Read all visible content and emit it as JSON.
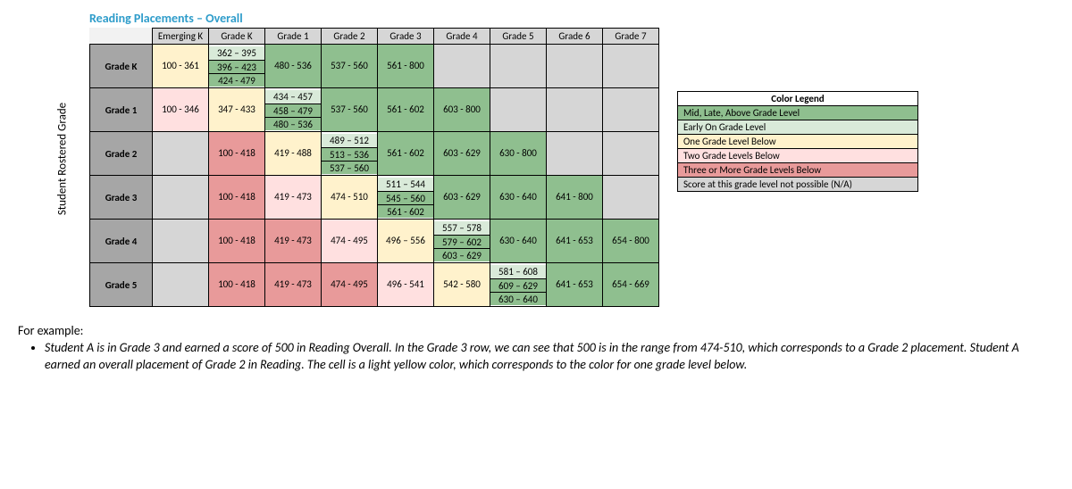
{
  "title": "Reading Placements – Overall",
  "vertical_axis_label": "Student Rostered Grade",
  "colors": {
    "mid_above": "#8fbf8f",
    "early_on": "#d9ead9",
    "one_below": "#fff2cc",
    "two_below": "#ffe0e0",
    "three_below": "#e89a9a",
    "na": "#d6d6d6",
    "header_row": "#d6d6d6",
    "header_col": "#a6a6a6"
  },
  "column_headers": [
    "Emerging K",
    "Grade K",
    "Grade 1",
    "Grade 2",
    "Grade 3",
    "Grade 4",
    "Grade 5",
    "Grade 6",
    "Grade 7"
  ],
  "rows": [
    {
      "label": "Grade K",
      "cells": [
        {
          "lines": [
            "100 - 361"
          ],
          "color": "one_below"
        },
        {
          "lines": [
            "362 – 395",
            "396 – 423",
            "424 - 479"
          ],
          "color": "mid_above",
          "first_color": "early_on"
        },
        {
          "lines": [
            "480 - 536"
          ],
          "color": "mid_above"
        },
        {
          "lines": [
            "537 - 560"
          ],
          "color": "mid_above"
        },
        {
          "lines": [
            "561 - 800"
          ],
          "color": "mid_above"
        },
        {
          "na": true
        },
        {
          "na": true
        },
        {
          "na": true
        },
        {
          "na": true
        }
      ]
    },
    {
      "label": "Grade 1",
      "cells": [
        {
          "lines": [
            "100 - 346"
          ],
          "color": "two_below"
        },
        {
          "lines": [
            "347 - 433"
          ],
          "color": "one_below"
        },
        {
          "lines": [
            "434 – 457",
            "458 – 479",
            "480 – 536"
          ],
          "color": "mid_above",
          "first_color": "early_on"
        },
        {
          "lines": [
            "537 - 560"
          ],
          "color": "mid_above"
        },
        {
          "lines": [
            "561 - 602"
          ],
          "color": "mid_above"
        },
        {
          "lines": [
            "603 - 800"
          ],
          "color": "mid_above"
        },
        {
          "na": true
        },
        {
          "na": true
        },
        {
          "na": true
        }
      ]
    },
    {
      "label": "Grade 2",
      "cells": [
        {
          "na": true
        },
        {
          "lines": [
            "100 - 418"
          ],
          "color": "three_below"
        },
        {
          "lines": [
            "419 - 488"
          ],
          "color": "one_below"
        },
        {
          "lines": [
            "489 – 512",
            "513 – 536",
            "537 – 560"
          ],
          "color": "mid_above",
          "first_color": "early_on"
        },
        {
          "lines": [
            "561 - 602"
          ],
          "color": "mid_above"
        },
        {
          "lines": [
            "603 - 629"
          ],
          "color": "mid_above"
        },
        {
          "lines": [
            "630 - 800"
          ],
          "color": "mid_above"
        },
        {
          "na": true
        },
        {
          "na": true
        }
      ]
    },
    {
      "label": "Grade 3",
      "cells": [
        {
          "na": true
        },
        {
          "lines": [
            "100 - 418"
          ],
          "color": "three_below"
        },
        {
          "lines": [
            "419 - 473"
          ],
          "color": "two_below"
        },
        {
          "lines": [
            "474 - 510"
          ],
          "color": "one_below"
        },
        {
          "lines": [
            "511 – 544",
            "545 – 560",
            "561 - 602"
          ],
          "color": "mid_above",
          "first_color": "early_on"
        },
        {
          "lines": [
            "603 - 629"
          ],
          "color": "mid_above"
        },
        {
          "lines": [
            "630 - 640"
          ],
          "color": "mid_above"
        },
        {
          "lines": [
            "641 - 800"
          ],
          "color": "mid_above"
        },
        {
          "na": true
        }
      ]
    },
    {
      "label": "Grade 4",
      "cells": [
        {
          "na": true
        },
        {
          "lines": [
            "100 - 418"
          ],
          "color": "three_below"
        },
        {
          "lines": [
            "419 - 473"
          ],
          "color": "three_below"
        },
        {
          "lines": [
            "474 - 495"
          ],
          "color": "two_below"
        },
        {
          "lines": [
            "496 – 556"
          ],
          "color": "one_below"
        },
        {
          "lines": [
            "557 – 578",
            "579 – 602",
            "603 – 629"
          ],
          "color": "mid_above",
          "first_color": "early_on"
        },
        {
          "lines": [
            "630 - 640"
          ],
          "color": "mid_above"
        },
        {
          "lines": [
            "641 - 653"
          ],
          "color": "mid_above"
        },
        {
          "lines": [
            "654 - 800"
          ],
          "color": "mid_above"
        }
      ]
    },
    {
      "label": "Grade 5",
      "cells": [
        {
          "na": true
        },
        {
          "lines": [
            "100 - 418"
          ],
          "color": "three_below"
        },
        {
          "lines": [
            "419 - 473"
          ],
          "color": "three_below"
        },
        {
          "lines": [
            "474 - 495"
          ],
          "color": "three_below"
        },
        {
          "lines": [
            "496 - 541"
          ],
          "color": "two_below"
        },
        {
          "lines": [
            "542 - 580"
          ],
          "color": "one_below"
        },
        {
          "lines": [
            "581 – 608",
            "609 – 629",
            "630 – 640"
          ],
          "color": "mid_above",
          "first_color": "early_on"
        },
        {
          "lines": [
            "641 - 653"
          ],
          "color": "mid_above"
        },
        {
          "lines": [
            "654 - 669"
          ],
          "color": "mid_above"
        }
      ]
    }
  ],
  "legend": {
    "title": "Color Legend",
    "items": [
      {
        "label": "Mid, Late, Above Grade Level",
        "color": "mid_above"
      },
      {
        "label": "Early On Grade Level",
        "color": "early_on"
      },
      {
        "label": "One Grade Level Below",
        "color": "one_below"
      },
      {
        "label": "Two Grade Levels Below",
        "color": "two_below"
      },
      {
        "label": "Three or More Grade Levels Below",
        "color": "three_below"
      },
      {
        "label": "Score at this grade level not possible (N/A)",
        "color": "na"
      }
    ]
  },
  "example": {
    "intro": "For example:",
    "bullet": "Student A is in Grade 3 and earned a score of 500 in Reading Overall. In the Grade 3 row, we can see that 500 is in the range from 474-510, which corresponds to a Grade 2 placement. Student A earned an overall placement of Grade 2 in Reading. The cell is a light yellow color, which corresponds to the color for one grade level below."
  }
}
